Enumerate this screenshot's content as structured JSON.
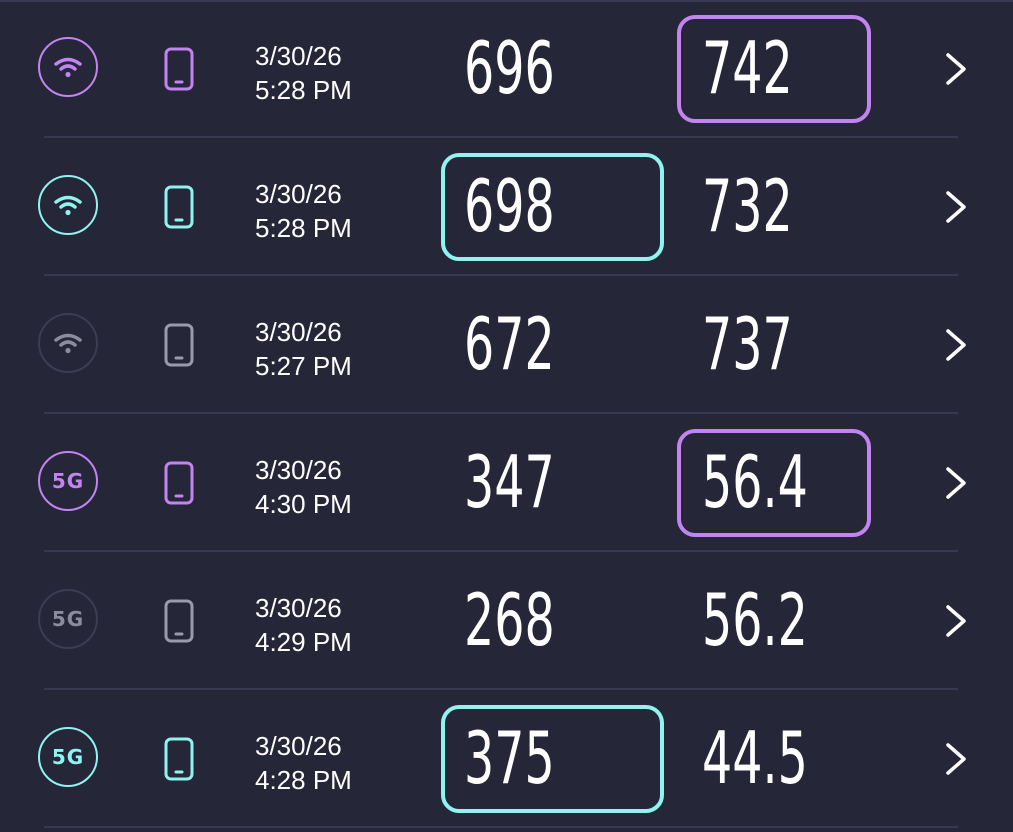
{
  "colors": {
    "background": "#262639",
    "purple": "#c184f0",
    "cyan": "#8ff3ef",
    "inactive": "#3c3c52",
    "inactive_device": "#9a9aab",
    "divider": "#38384e"
  },
  "results": [
    {
      "network": "wifi",
      "network_icon": "wifi-icon",
      "accent": "purple",
      "date": "3/30/26",
      "time": "5:28 PM",
      "download": "696",
      "upload": "742",
      "highlight": "upload"
    },
    {
      "network": "wifi",
      "network_icon": "wifi-icon",
      "accent": "cyan",
      "date": "3/30/26",
      "time": "5:28 PM",
      "download": "698",
      "upload": "732",
      "highlight": "download"
    },
    {
      "network": "wifi",
      "network_icon": "wifi-icon",
      "accent": "inactive",
      "date": "3/30/26",
      "time": "5:27 PM",
      "download": "672",
      "upload": "737",
      "highlight": ""
    },
    {
      "network": "5g",
      "network_icon": "5g-icon",
      "network_label": "5G",
      "accent": "purple",
      "date": "3/30/26",
      "time": "4:30 PM",
      "download": "347",
      "upload": "56.4",
      "highlight": "upload"
    },
    {
      "network": "5g",
      "network_icon": "5g-icon",
      "network_label": "5G",
      "accent": "inactive",
      "date": "3/30/26",
      "time": "4:29 PM",
      "download": "268",
      "upload": "56.2",
      "highlight": ""
    },
    {
      "network": "5g",
      "network_icon": "5g-icon",
      "network_label": "5G",
      "accent": "cyan",
      "date": "3/30/26",
      "time": "4:28 PM",
      "download": "375",
      "upload": "44.5",
      "highlight": "download"
    }
  ]
}
